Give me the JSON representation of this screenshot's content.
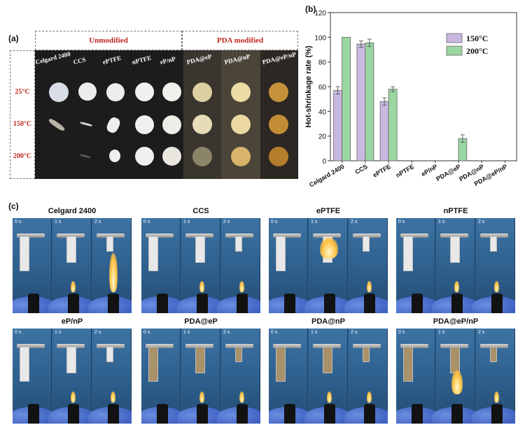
{
  "panel_labels": {
    "a": "(a)",
    "b": "(b)",
    "c": "(c)"
  },
  "panel_a": {
    "groups": [
      "Unmodified",
      "PDA modified"
    ],
    "columns": [
      "Celgard 2400",
      "CCS",
      "ePTFE",
      "nPTFE",
      "eP/nP",
      "PDA@eP",
      "PDA@nP",
      "PDA@eP/nP"
    ],
    "rows": [
      "25°C",
      "150°C",
      "200°C"
    ]
  },
  "chart_data": {
    "type": "bar",
    "title": "",
    "xlabel": "",
    "ylabel": "Hot-shrinkage rate (%)",
    "ylim": [
      0,
      120
    ],
    "yticks": [
      0,
      20,
      40,
      60,
      80,
      100,
      120
    ],
    "categories": [
      "Celgard 2400",
      "CCS",
      "ePTFE",
      "nPTFE",
      "eP/nP",
      "PDA@eP",
      "PDA@nP",
      "PDA@eP/nP"
    ],
    "series": [
      {
        "name": "150°C",
        "color": "#c9b8e0",
        "values": [
          57,
          94.5,
          48,
          0,
          0,
          0,
          0,
          0
        ],
        "errors": [
          3,
          2.5,
          3,
          0,
          0,
          0,
          0,
          0
        ]
      },
      {
        "name": "200°C",
        "color": "#9ad6a2",
        "values": [
          100,
          95.5,
          58,
          0,
          0,
          18,
          0,
          0
        ],
        "errors": [
          0,
          3,
          2,
          0,
          0,
          3,
          0,
          0
        ]
      }
    ],
    "legend": "top-right"
  },
  "panel_c": {
    "samples": [
      "Celgard 2400",
      "CCS",
      "ePTFE",
      "nPTFE",
      "eP/nP",
      "PDA@eP",
      "PDA@nP",
      "PDA@eP/nP"
    ],
    "times": [
      "0 s",
      "1 s",
      "2 s"
    ]
  }
}
